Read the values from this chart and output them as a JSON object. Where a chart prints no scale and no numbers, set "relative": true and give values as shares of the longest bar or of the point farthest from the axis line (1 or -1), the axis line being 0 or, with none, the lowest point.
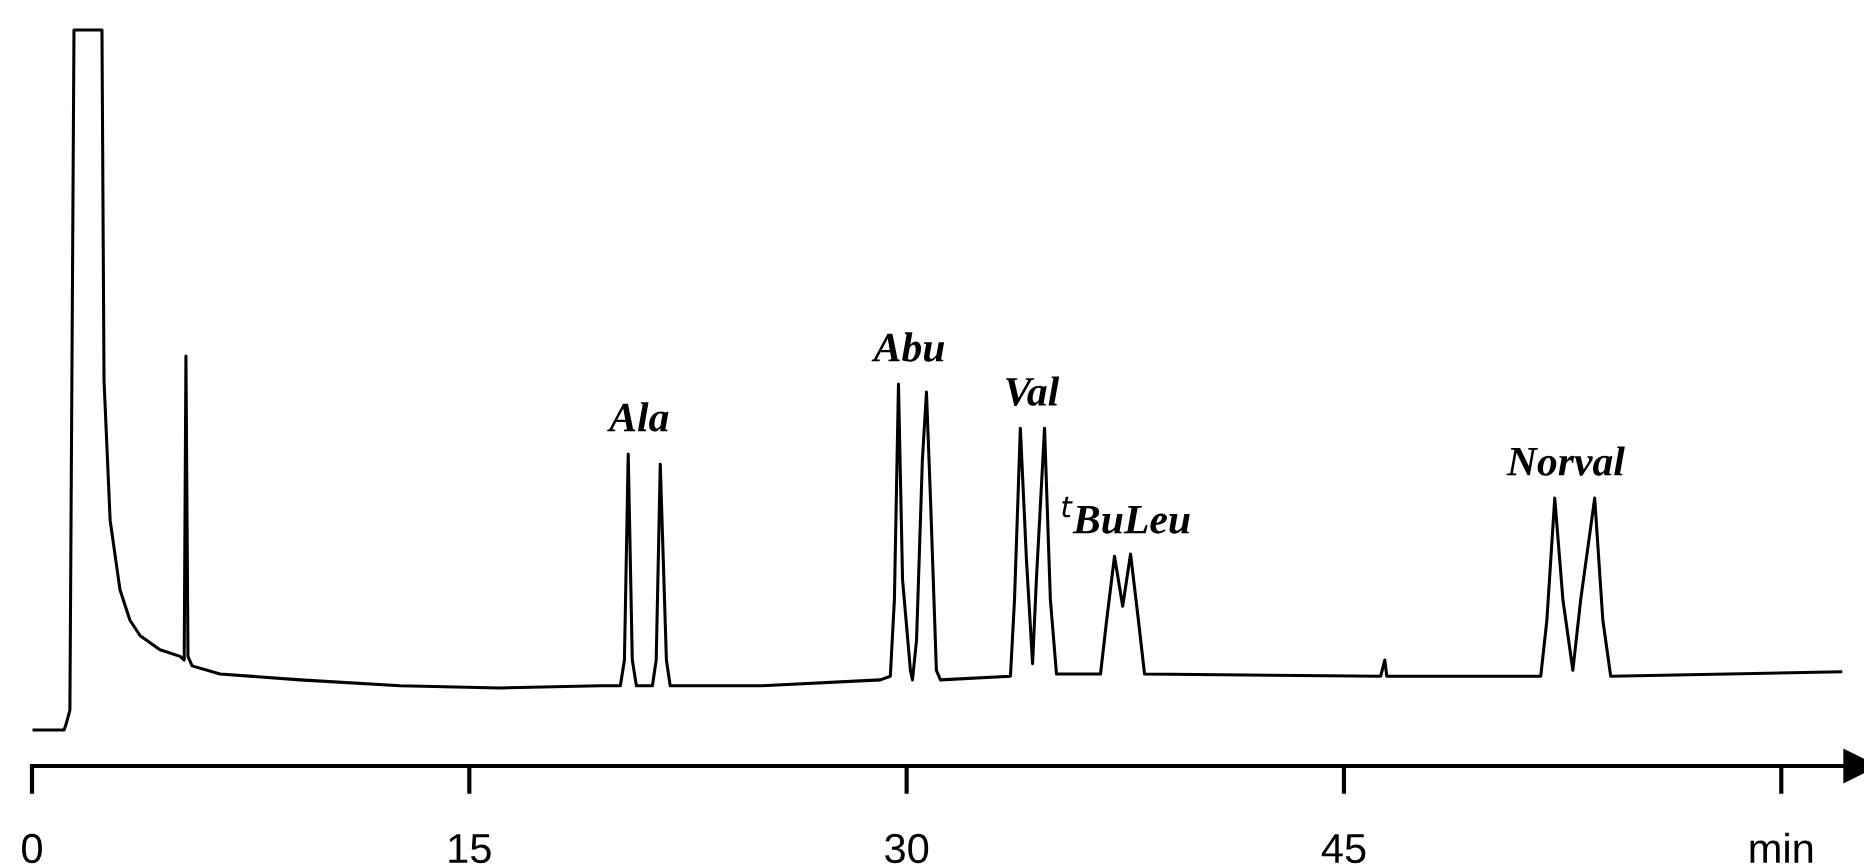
{
  "chart_data": {
    "type": "line",
    "relative": true,
    "xlim": [
      0,
      62.7
    ],
    "xticks": [
      0,
      15,
      30,
      45,
      {
        "value": 60,
        "label": "min"
      }
    ],
    "grid": false,
    "legend": false,
    "marker": "none",
    "line_style": "solid",
    "series": [
      {
        "color": "#000000",
        "x": [
          0.07,
          1.1,
          1.17,
          1.3,
          1.44,
          2.4,
          2.47,
          2.68,
          3.02,
          3.36,
          3.71,
          4.39,
          5.08,
          5.22,
          5.28,
          5.35,
          5.49,
          6.45,
          9.2,
          12.63,
          16.06,
          19.49,
          20.18,
          20.32,
          20.45,
          20.59,
          20.73,
          21.28,
          21.41,
          21.55,
          21.76,
          21.89,
          24.98,
          29.1,
          29.44,
          29.58,
          29.72,
          29.86,
          30.13,
          30.2,
          30.34,
          30.54,
          30.68,
          30.82,
          31.02,
          31.16,
          33.56,
          33.7,
          33.9,
          34.11,
          34.32,
          34.45,
          34.73,
          34.93,
          35.14,
          36.65,
          36.86,
          37.13,
          37.41,
          37.68,
          37.95,
          38.16,
          46.26,
          46.4,
          46.47,
          51.75,
          51.96,
          52.23,
          52.51,
          52.85,
          53.12,
          53.6,
          53.88,
          54.15,
          62.04
        ],
        "values": [
          0.049,
          0.049,
          0.057,
          0.076,
          1.0,
          1.0,
          0.524,
          0.334,
          0.239,
          0.198,
          0.177,
          0.158,
          0.149,
          0.144,
          0.557,
          0.149,
          0.136,
          0.125,
          0.117,
          0.109,
          0.106,
          0.109,
          0.109,
          0.144,
          0.424,
          0.144,
          0.109,
          0.109,
          0.144,
          0.41,
          0.144,
          0.109,
          0.109,
          0.117,
          0.122,
          0.226,
          0.519,
          0.253,
          0.13,
          0.117,
          0.171,
          0.416,
          0.508,
          0.361,
          0.13,
          0.117,
          0.122,
          0.226,
          0.459,
          0.28,
          0.139,
          0.253,
          0.459,
          0.226,
          0.125,
          0.125,
          0.198,
          0.285,
          0.217,
          0.288,
          0.198,
          0.125,
          0.122,
          0.144,
          0.122,
          0.122,
          0.198,
          0.364,
          0.226,
          0.13,
          0.226,
          0.364,
          0.198,
          0.122,
          0.128
        ]
      }
    ],
    "annotations": [
      {
        "text": "Ala",
        "x": 20.45,
        "y": 0.424
      },
      {
        "text": "Abu",
        "x": 29.72,
        "y": 0.519
      },
      {
        "text": "Val",
        "x": 33.9,
        "y": 0.459
      },
      {
        "text": "$^{t}$BuLeu",
        "x": 37.13,
        "y": 0.285
      },
      {
        "text": "Norval",
        "x": 52.23,
        "y": 0.364
      }
    ]
  }
}
